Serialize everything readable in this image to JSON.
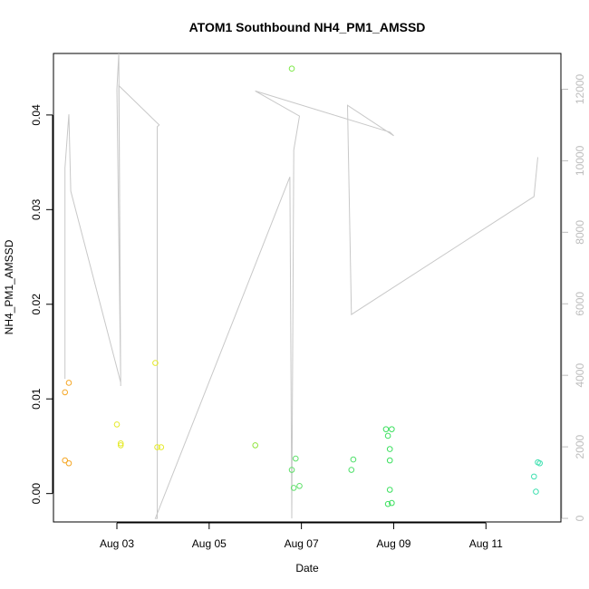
{
  "chart_data": {
    "type": "scatter",
    "title": "ATOM1 Southbound NH4_PM1_AMSSD",
    "xlabel": "Date",
    "ylabel": "NH4_PM1_AMSSD",
    "x_is_date": true,
    "xlim": [
      "2016-08-01T15:00",
      "2016-08-12T15:00"
    ],
    "ylim": [
      -0.003,
      0.0465
    ],
    "x_ticks": [
      {
        "value": "2016-08-03T00:00",
        "label": "Aug 03"
      },
      {
        "value": "2016-08-05T00:00",
        "label": "Aug 05"
      },
      {
        "value": "2016-08-07T00:00",
        "label": "Aug 07"
      },
      {
        "value": "2016-08-09T00:00",
        "label": "Aug 09"
      },
      {
        "value": "2016-08-11T00:00",
        "label": "Aug 11"
      }
    ],
    "y_ticks": [
      0.0,
      0.01,
      0.02,
      0.03,
      0.04
    ],
    "y_tick_labels": [
      "0.00",
      "0.01",
      "0.02",
      "0.03",
      "0.04"
    ],
    "secondary_axis": {
      "side": "right",
      "color": "#bdbdbd",
      "ylim": [
        -100,
        13000
      ],
      "ticks": [
        0,
        2000,
        4000,
        6000,
        8000,
        10000,
        12000
      ]
    },
    "grid": false,
    "legend": "none",
    "points": [
      {
        "x": "2016-08-01T21:00",
        "y": 0.0107,
        "color": "#f5a623"
      },
      {
        "x": "2016-08-01T23:00",
        "y": 0.0117,
        "color": "#f5a623"
      },
      {
        "x": "2016-08-01T21:00",
        "y": 0.0035,
        "color": "#f5a623"
      },
      {
        "x": "2016-08-01T23:00",
        "y": 0.0032,
        "color": "#f5a623"
      },
      {
        "x": "2016-08-03T00:00",
        "y": 0.0073,
        "color": "#e5ea2b"
      },
      {
        "x": "2016-08-03T02:00",
        "y": 0.0053,
        "color": "#e5ea2b"
      },
      {
        "x": "2016-08-03T02:00",
        "y": 0.0051,
        "color": "#e5ea2b"
      },
      {
        "x": "2016-08-03T20:00",
        "y": 0.0138,
        "color": "#e5ea2b"
      },
      {
        "x": "2016-08-03T21:00",
        "y": 0.0049,
        "color": "#e5ea2b"
      },
      {
        "x": "2016-08-03T23:00",
        "y": 0.0049,
        "color": "#e5ea2b"
      },
      {
        "x": "2016-08-06T00:00",
        "y": 0.0051,
        "color": "#8ee43a"
      },
      {
        "x": "2016-08-06T19:00",
        "y": 0.0449,
        "color": "#7ee84a"
      },
      {
        "x": "2016-08-06T19:00",
        "y": 0.0025,
        "color": "#5fe06a"
      },
      {
        "x": "2016-08-06T21:00",
        "y": 0.0037,
        "color": "#5fe06a"
      },
      {
        "x": "2016-08-06T20:00",
        "y": 0.0006,
        "color": "#5fe06a"
      },
      {
        "x": "2016-08-06T23:00",
        "y": 0.0008,
        "color": "#5fe06a"
      },
      {
        "x": "2016-08-08T02:00",
        "y": 0.0025,
        "color": "#4fe06a"
      },
      {
        "x": "2016-08-08T03:00",
        "y": 0.0036,
        "color": "#4fe06a"
      },
      {
        "x": "2016-08-08T20:00",
        "y": 0.0068,
        "color": "#3ce05f"
      },
      {
        "x": "2016-08-08T21:00",
        "y": 0.0061,
        "color": "#3ce05f"
      },
      {
        "x": "2016-08-08T23:00",
        "y": 0.0068,
        "color": "#3ce05f"
      },
      {
        "x": "2016-08-08T22:00",
        "y": 0.0047,
        "color": "#3ce05f"
      },
      {
        "x": "2016-08-08T22:00",
        "y": 0.0035,
        "color": "#3ce05f"
      },
      {
        "x": "2016-08-08T22:00",
        "y": 0.0004,
        "color": "#3ce05f"
      },
      {
        "x": "2016-08-08T21:00",
        "y": -0.0011,
        "color": "#3ce05f"
      },
      {
        "x": "2016-08-08T23:00",
        "y": -0.001,
        "color": "#3ce05f"
      },
      {
        "x": "2016-08-12T01:00",
        "y": 0.0018,
        "color": "#3ee0b0"
      },
      {
        "x": "2016-08-12T03:00",
        "y": 0.0033,
        "color": "#3ee0b0"
      },
      {
        "x": "2016-08-12T04:00",
        "y": 0.0032,
        "color": "#3ee0b0"
      },
      {
        "x": "2016-08-12T02:00",
        "y": 0.0002,
        "color": "#3ee0b0"
      }
    ],
    "line_series": {
      "axis": "right",
      "color": "#c8c8c8",
      "points": [
        {
          "x": "2016-08-01T21:00",
          "y": 3900
        },
        {
          "x": "2016-08-01T21:00",
          "y": 9800
        },
        {
          "x": "2016-08-01T23:00",
          "y": 11300
        },
        {
          "x": "2016-08-02T00:00",
          "y": 9150
        },
        {
          "x": "2016-08-03T02:00",
          "y": 3800
        },
        {
          "x": "2016-08-03T00:00",
          "y": 12000
        },
        {
          "x": "2016-08-03T01:00",
          "y": 13000
        },
        {
          "x": "2016-08-03T02:00",
          "y": 3700
        },
        {
          "x": "2016-08-03T01:00",
          "y": 12100
        },
        {
          "x": "2016-08-03T22:00",
          "y": 11000
        },
        {
          "x": "2016-08-03T21:00",
          "y": 10950
        },
        {
          "x": "2016-08-03T21:00",
          "y": 0
        },
        {
          "x": "2016-08-03T20:00",
          "y": 0
        },
        {
          "x": "2016-08-06T18:00",
          "y": 9550
        },
        {
          "x": "2016-08-06T19:00",
          "y": 0
        },
        {
          "x": "2016-08-06T20:00",
          "y": 10300
        },
        {
          "x": "2016-08-06T23:00",
          "y": 11250
        },
        {
          "x": "2016-08-06T00:00",
          "y": 11950
        },
        {
          "x": "2016-08-08T22:00",
          "y": 10800
        },
        {
          "x": "2016-08-09T00:00",
          "y": 10700
        },
        {
          "x": "2016-08-08T00:00",
          "y": 11550
        },
        {
          "x": "2016-08-08T02:00",
          "y": 5700
        },
        {
          "x": "2016-08-12T01:00",
          "y": 9000
        },
        {
          "x": "2016-08-12T03:00",
          "y": 10100
        }
      ]
    }
  }
}
